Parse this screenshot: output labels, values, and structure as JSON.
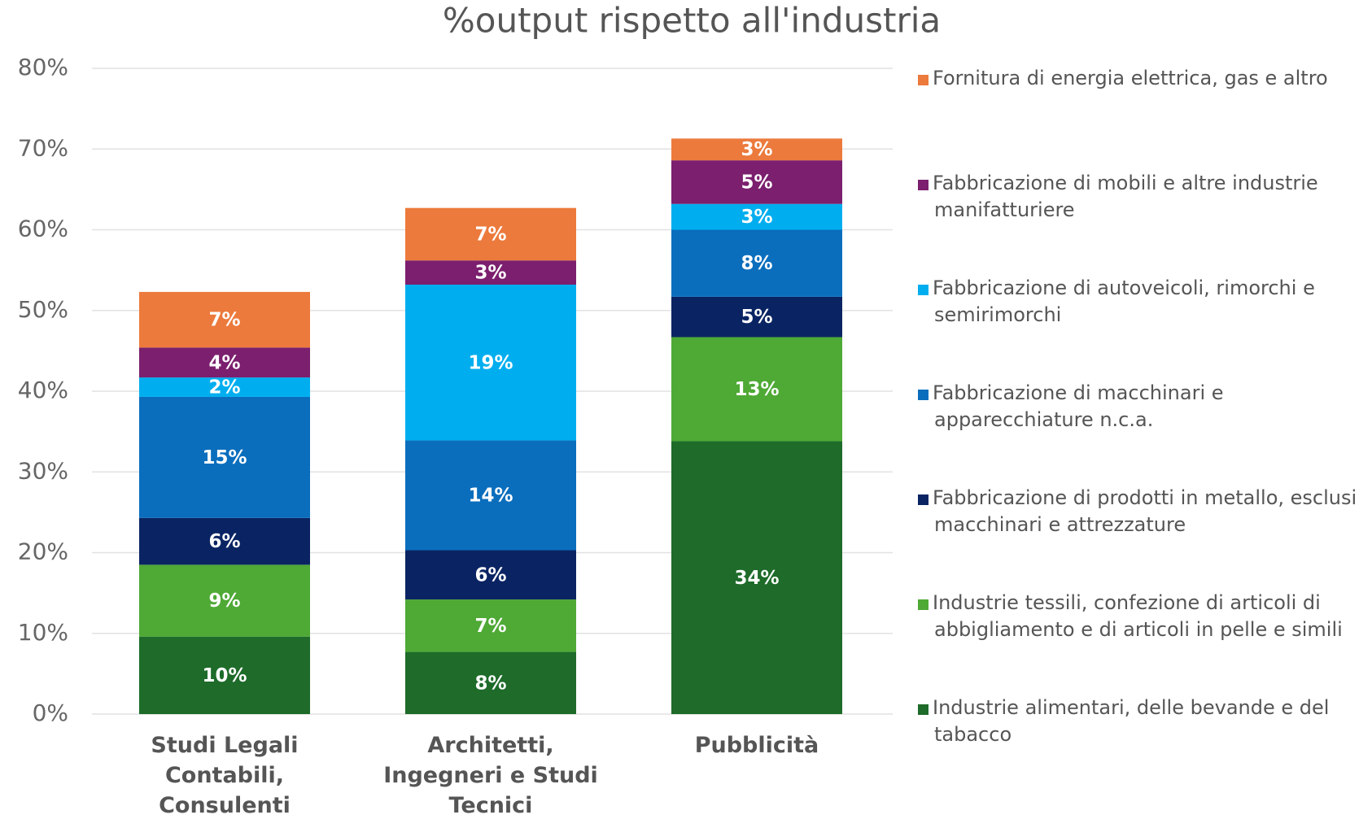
{
  "chart_data": {
    "type": "stacked_bar",
    "title": "%output rispetto all'industria",
    "categories": [
      "Studi Legali Contabili, Consulenti",
      "Architetti, Ingegneri e Studi Tecnici",
      "Pubblicità"
    ],
    "series": [
      {
        "name": "Industrie alimentari, delle bevande e del tabacco",
        "color": "#1e6b2a",
        "values": [
          9.6,
          7.7,
          33.8
        ],
        "value_labels": [
          "10%",
          "8%",
          "34%"
        ]
      },
      {
        "name": "Industrie tessili, confezione di articoli di abbigliamento e di articoli in pelle e simili",
        "color": "#4ea935",
        "values": [
          8.9,
          6.5,
          12.9
        ],
        "value_labels": [
          "9%",
          "7%",
          "13%"
        ]
      },
      {
        "name": "Fabbricazione di prodotti in metallo, esclusi macchinari e attrezzature",
        "color": "#0a2463",
        "values": [
          5.8,
          6.1,
          5.0
        ],
        "value_labels": [
          "6%",
          "6%",
          "5%"
        ]
      },
      {
        "name": "Fabbricazione di macchinari e apparecchiature n.c.a.",
        "color": "#0a6ebd",
        "values": [
          15.0,
          13.6,
          8.3
        ],
        "value_labels": [
          "15%",
          "14%",
          "8%"
        ]
      },
      {
        "name": "Fabbricazione di autoveicoli, rimorchi e semirimorchi",
        "color": "#00aeef",
        "values": [
          2.4,
          19.3,
          3.2
        ],
        "value_labels": [
          "2%",
          "19%",
          "3%"
        ]
      },
      {
        "name": "Fabbricazione di mobili e altre industrie manifatturiere",
        "color": "#7b1f6e",
        "values": [
          3.7,
          3.0,
          5.4
        ],
        "value_labels": [
          "4%",
          "3%",
          "5%"
        ]
      },
      {
        "name": "Fornitura di energia elettrica, gas e altro",
        "color": "#ec7a3c",
        "values": [
          6.9,
          6.5,
          2.7
        ],
        "value_labels": [
          "7%",
          "7%",
          "3%"
        ]
      }
    ],
    "ylim": [
      0,
      80
    ],
    "yticks": [
      {
        "value": 0,
        "label": "0%"
      },
      {
        "value": 10,
        "label": "10%"
      },
      {
        "value": 20,
        "label": "20%"
      },
      {
        "value": 30,
        "label": "30%"
      },
      {
        "value": 40,
        "label": "40%"
      },
      {
        "value": 50,
        "label": "50%"
      },
      {
        "value": 60,
        "label": "60%"
      },
      {
        "value": 70,
        "label": "70%"
      },
      {
        "value": 80,
        "label": "80%"
      }
    ],
    "grid": true,
    "legend": "right"
  }
}
